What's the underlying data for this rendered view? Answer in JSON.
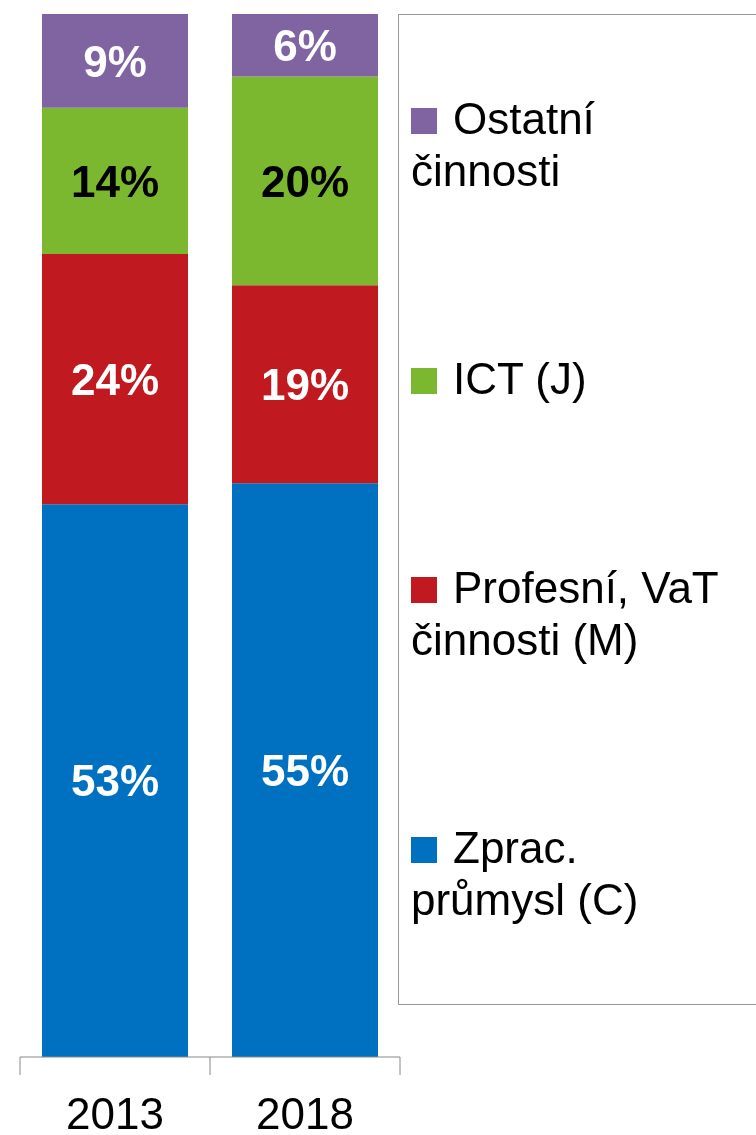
{
  "chart_data": {
    "type": "bar",
    "categories": [
      "2013",
      "2018"
    ],
    "stacked": true,
    "legend": "right",
    "series": [
      {
        "name": "Zprac. průmysl (C)",
        "color": "#0070c0",
        "values": [
          53,
          55
        ],
        "value_labels": [
          "53%",
          "55%"
        ]
      },
      {
        "name": "Profesní, VaT činnosti (M)",
        "color": "#c0191f",
        "values": [
          24,
          19
        ],
        "value_labels": [
          "24%",
          "19%"
        ]
      },
      {
        "name": "ICT (J)",
        "color": "#7cb82f",
        "values": [
          14,
          20
        ],
        "value_labels": [
          "14%",
          "20%"
        ]
      },
      {
        "name": "Ostatní činnosti",
        "color": "#8064a2",
        "values": [
          9,
          6
        ],
        "value_labels": [
          "9%",
          "6%"
        ]
      }
    ]
  }
}
